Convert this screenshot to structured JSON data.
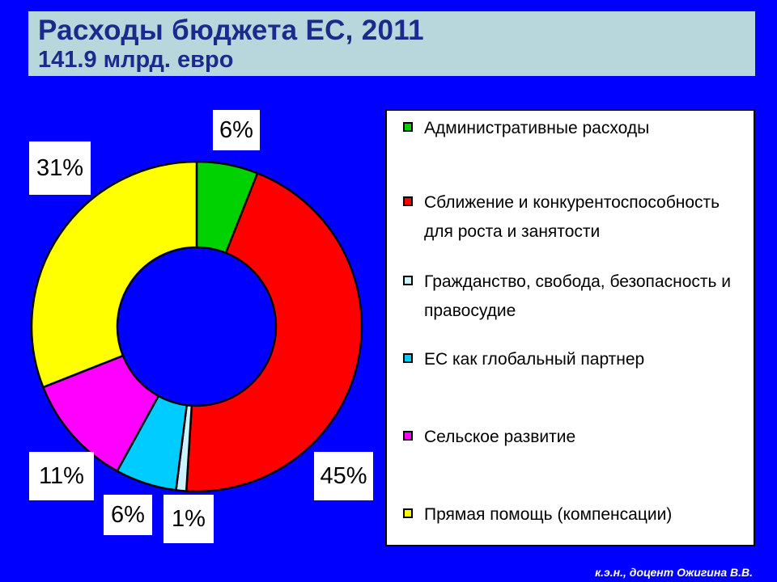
{
  "title": {
    "line1": "Расходы бюджета ЕС,  2011",
    "line2": "141.9 млрд. евро"
  },
  "chart_data": {
    "type": "pie",
    "title": "Расходы бюджета ЕС,  2011",
    "subtitle": "141.9 млрд. евро",
    "legend_position": "right",
    "slices": [
      {
        "name": "Административные расходы",
        "value": 6,
        "label": "6%",
        "color": "#00d100"
      },
      {
        "name": "Сближение и конкурентоспособность для роста и занятости",
        "value": 45,
        "label": "45%",
        "color": "#ff0000"
      },
      {
        "name": "Гражданство, свобода, безопасность и правосудие",
        "value": 1,
        "label": "1%",
        "color": "#ccf2ff"
      },
      {
        "name": "ЕС как глобальный партнер",
        "value": 6,
        "label": "6%",
        "color": "#00ccff"
      },
      {
        "name": "Сельское развитие",
        "value": 11,
        "label": "11%",
        "color": "#ff00ff"
      },
      {
        "name": "Прямая помощь (компенсации)",
        "value": 31,
        "label": "31%",
        "color": "#ffff00"
      }
    ]
  },
  "legend": {
    "items": [
      {
        "text": "Административные расходы",
        "color": "#00d100"
      },
      {
        "text": "Сближение и конкурентоспособность для роста и занятости",
        "color": "#ff0000"
      },
      {
        "text": "Гражданство, свобода, безопасность и правосудие",
        "color": "#ccf2ff"
      },
      {
        "text": "ЕС как глобальный партнер",
        "color": "#00ccff"
      },
      {
        "text": "Сельское развитие",
        "color": "#ff00ff"
      },
      {
        "text": "Прямая помощь (компенсации)",
        "color": "#ffff00"
      }
    ]
  },
  "footer": "к.э.н., доцент Ожигина В.В."
}
